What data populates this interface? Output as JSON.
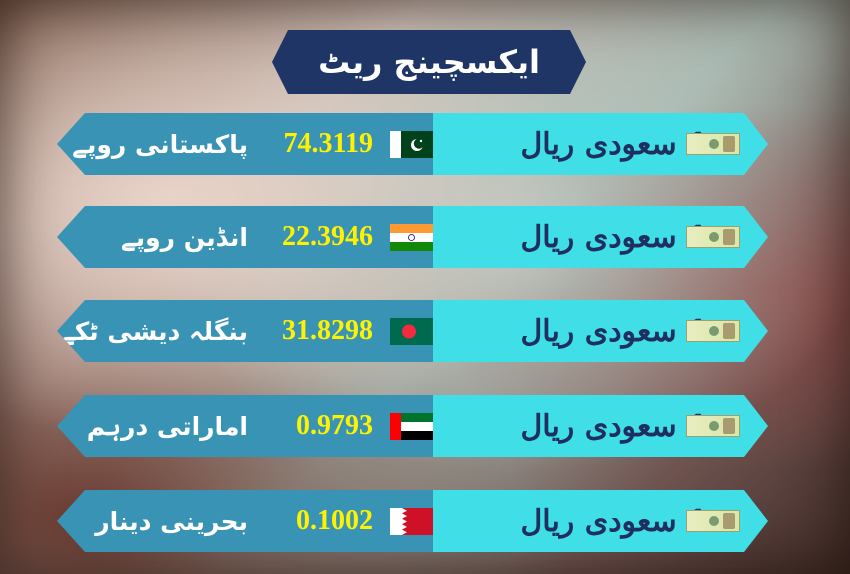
{
  "title": "ایکسچینج ریٹ",
  "colors": {
    "title_bg": "#1f3566",
    "left_band": "#3993b4",
    "right_band": "#40dfe8",
    "rate_text": "#fff200",
    "base_text": "#1f2f60"
  },
  "rows": [
    {
      "base": "1 سعودی ریال",
      "base_icon": "saudi-riyal-note-icon",
      "flag": "pakistan-flag-icon",
      "rate": "74.3119",
      "currency": "پاکستانی روپے"
    },
    {
      "base": "1 سعودی ریال",
      "base_icon": "saudi-riyal-note-icon",
      "flag": "india-flag-icon",
      "rate": "22.3946",
      "currency": "انڈین روپے"
    },
    {
      "base": "1 سعودی ریال",
      "base_icon": "saudi-riyal-note-icon",
      "flag": "bangladesh-flag-icon",
      "rate": "31.8298",
      "currency": "بنگلہ دیشی ٹکے"
    },
    {
      "base": "1 سعودی ریال",
      "base_icon": "saudi-riyal-note-icon",
      "flag": "uae-flag-icon",
      "rate": "0.9793",
      "currency": "اماراتی درہم"
    },
    {
      "base": "1 سعودی ریال",
      "base_icon": "saudi-riyal-note-icon",
      "flag": "bahrain-flag-icon",
      "rate": "0.1002",
      "currency": "بحرینی دینار"
    }
  ]
}
